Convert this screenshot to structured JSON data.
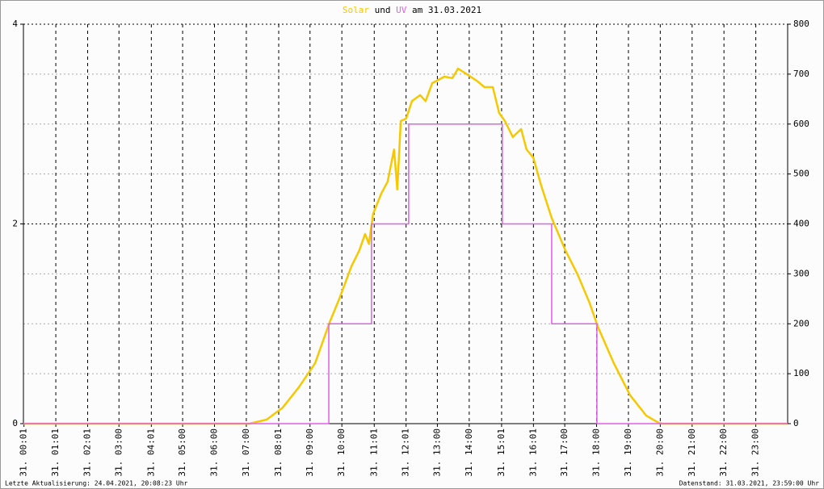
{
  "chart_data": {
    "type": "line",
    "title_mid": "und",
    "title_end": "am 31.03.2021",
    "footer_left": "Letzte Aktualisierung: 24.04.2021, 20:08:23 Uhr",
    "footer_right": "Datenstand: 31.03.2021, 23:59:00 Uhr",
    "xlim": [
      0,
      24
    ],
    "xticks": [
      {
        "value": 0.017,
        "label": "31. 00:01"
      },
      {
        "value": 1.017,
        "label": "31. 01:01"
      },
      {
        "value": 2.017,
        "label": "31. 02:01"
      },
      {
        "value": 3,
        "label": "31. 03:00"
      },
      {
        "value": 4.017,
        "label": "31. 04:01"
      },
      {
        "value": 5,
        "label": "31. 05:00"
      },
      {
        "value": 6,
        "label": "31. 06:00"
      },
      {
        "value": 7,
        "label": "31. 07:00"
      },
      {
        "value": 8.017,
        "label": "31. 08:01"
      },
      {
        "value": 9,
        "label": "31. 09:00"
      },
      {
        "value": 10,
        "label": "31. 10:00"
      },
      {
        "value": 11.017,
        "label": "31. 11:01"
      },
      {
        "value": 12.017,
        "label": "31. 12:01"
      },
      {
        "value": 13,
        "label": "31. 13:00"
      },
      {
        "value": 14,
        "label": "31. 14:00"
      },
      {
        "value": 15.017,
        "label": "31. 15:01"
      },
      {
        "value": 16.017,
        "label": "31. 16:01"
      },
      {
        "value": 17,
        "label": "31. 17:00"
      },
      {
        "value": 18,
        "label": "31. 18:00"
      },
      {
        "value": 19,
        "label": "31. 19:00"
      },
      {
        "value": 20,
        "label": "31. 20:00"
      },
      {
        "value": 21,
        "label": "31. 21:00"
      },
      {
        "value": 22,
        "label": "31. 22:00"
      },
      {
        "value": 23,
        "label": "31. 23:00"
      }
    ],
    "ylim": [
      0,
      4
    ],
    "yticks": [
      0,
      2,
      4
    ],
    "y2lim": [
      0,
      800
    ],
    "y2ticks": [
      0,
      100,
      200,
      300,
      400,
      500,
      600,
      700,
      800
    ],
    "grid": true,
    "series": [
      {
        "name": "Solar",
        "color": "#f5c800",
        "axis": "y2",
        "x": [
          0,
          7.1,
          7.64,
          8.14,
          8.65,
          9.16,
          9.61,
          9.92,
          10.3,
          10.55,
          10.73,
          10.85,
          10.98,
          11.24,
          11.44,
          11.64,
          11.74,
          11.85,
          12.02,
          12.2,
          12.46,
          12.63,
          12.84,
          13.22,
          13.47,
          13.65,
          13.85,
          14.23,
          14.48,
          14.74,
          14.94,
          15.12,
          15.37,
          15.63,
          15.8,
          16.01,
          16.26,
          16.59,
          17.02,
          17.4,
          17.78,
          18.04,
          18.54,
          19.05,
          19.56,
          19.94,
          20.07,
          24
        ],
        "values": [
          0,
          0,
          8,
          32,
          73,
          121,
          202,
          250,
          315,
          347,
          380,
          360,
          420,
          461,
          485,
          549,
          469,
          606,
          611,
          646,
          658,
          646,
          682,
          695,
          692,
          711,
          703,
          687,
          674,
          674,
          622,
          606,
          574,
          590,
          549,
          533,
          477,
          412,
          347,
          299,
          242,
          194,
          121,
          57,
          16,
          2,
          0,
          0
        ]
      },
      {
        "name": "UV",
        "color": "#e060e8",
        "axis": "y",
        "x": [
          0,
          9.59,
          9.59,
          10.93,
          10.93,
          12.1,
          12.1,
          15.04,
          15.04,
          16.59,
          16.59,
          18.01,
          18.01,
          24
        ],
        "values": [
          0,
          0,
          1,
          1,
          2,
          2,
          3,
          3,
          2,
          2,
          1,
          1,
          0,
          0
        ]
      }
    ]
  }
}
